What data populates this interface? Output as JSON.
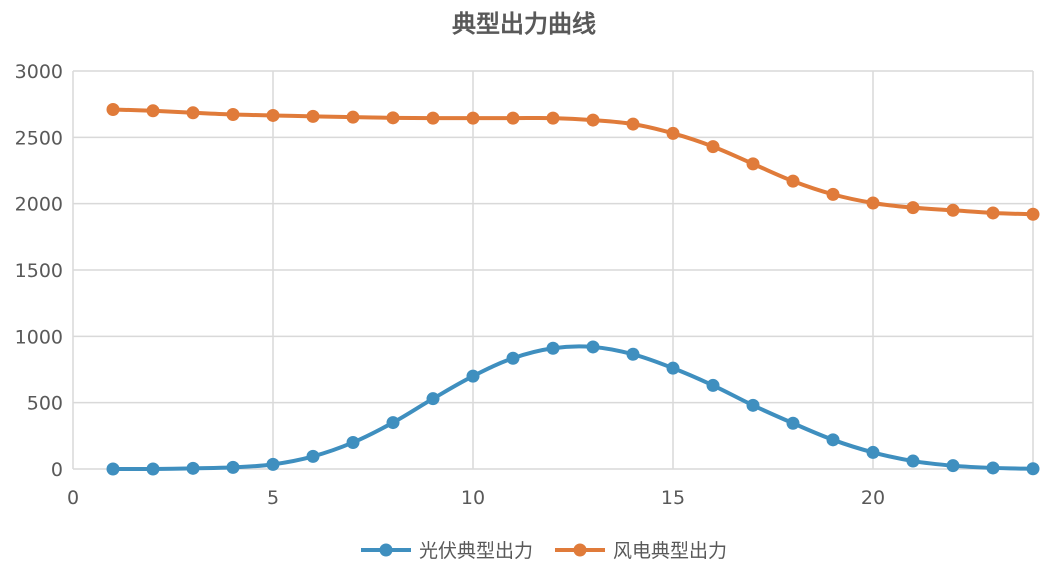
{
  "chart_data": {
    "type": "line",
    "title": "典型出力曲线",
    "xlabel": "",
    "ylabel": "",
    "xlim": [
      0,
      24
    ],
    "ylim": [
      0,
      3000
    ],
    "x_ticks": [
      0,
      5,
      10,
      15,
      20
    ],
    "y_ticks": [
      0,
      500,
      1000,
      1500,
      2000,
      2500,
      3000
    ],
    "grid": true,
    "legend_position": "bottom",
    "x": [
      1,
      2,
      3,
      4,
      5,
      6,
      7,
      8,
      9,
      10,
      11,
      12,
      13,
      14,
      15,
      16,
      17,
      18,
      19,
      20,
      21,
      22,
      23,
      24
    ],
    "series": [
      {
        "name": "光伏典型出力",
        "color": "#3f8fbf",
        "values": [
          0,
          0,
          5,
          12,
          35,
          95,
          200,
          350,
          530,
          700,
          835,
          910,
          920,
          865,
          760,
          630,
          480,
          345,
          220,
          125,
          60,
          25,
          8,
          2
        ]
      },
      {
        "name": "风电典型出力",
        "color": "#e07b3a",
        "values": [
          2710,
          2700,
          2685,
          2672,
          2665,
          2658,
          2652,
          2647,
          2645,
          2645,
          2645,
          2645,
          2630,
          2600,
          2530,
          2430,
          2300,
          2170,
          2070,
          2005,
          1970,
          1950,
          1930,
          1920
        ]
      }
    ]
  }
}
